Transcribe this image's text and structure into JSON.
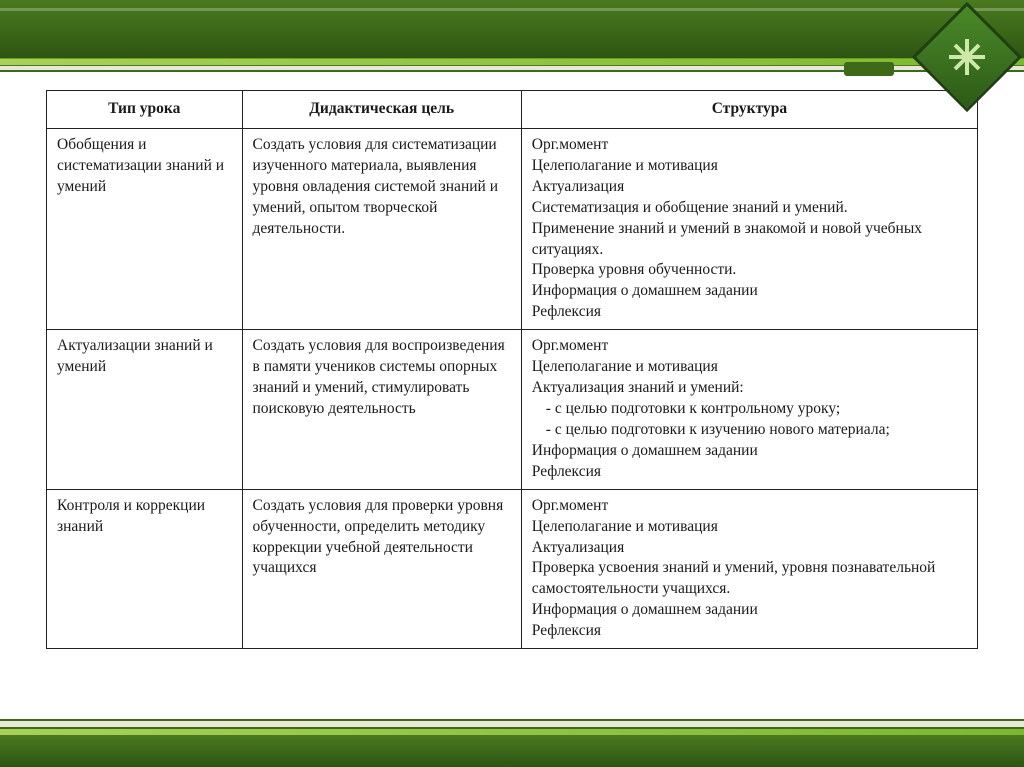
{
  "table": {
    "headers": [
      "Тип урока",
      "Дидактическая цель",
      "Структура"
    ],
    "column_widths_pct": [
      21,
      30,
      49
    ],
    "border_color": "#222222",
    "font_size_pt": 12,
    "rows": [
      {
        "type": "Обобщения и систематизации знаний и умений",
        "goal": "Создать условия для систематизации изученного материала, выявления уровня овладения системой знаний и умений, опытом творческой деятельности.",
        "structure": [
          {
            "text": "Орг.момент",
            "indent": false
          },
          {
            "text": "Целеполагание и мотивация",
            "indent": false
          },
          {
            "text": "Актуализация",
            "indent": false
          },
          {
            "text": "Систематизация и обобщение знаний и умений.",
            "indent": false
          },
          {
            "text": "Применение знаний и умений в знакомой и новой учебных ситуациях.",
            "indent": false
          },
          {
            "text": "Проверка уровня обученности.",
            "indent": false
          },
          {
            "text": "Информация о домашнем задании",
            "indent": false
          },
          {
            "text": "Рефлексия",
            "indent": false
          }
        ]
      },
      {
        "type": "Актуализации знаний и умений",
        "goal": "Создать условия для воспроизведения в памяти учеников системы опорных знаний и умений, стимулировать поисковую деятельность",
        "structure": [
          {
            "text": "Орг.момент",
            "indent": false
          },
          {
            "text": "Целеполагание и мотивация",
            "indent": false
          },
          {
            "text": "Актуализация знаний и умений:",
            "indent": false
          },
          {
            "text": "- с целью подготовки к контрольному уроку;",
            "indent": true
          },
          {
            "text": "- с целью подготовки к изучению нового материала;",
            "indent": true
          },
          {
            "text": "Информация о домашнем задании",
            "indent": false
          },
          {
            "text": "Рефлексия",
            "indent": false
          }
        ]
      },
      {
        "type": "Контроля и коррекции знаний",
        "goal": "Создать условия для проверки уровня обученности, определить методику коррекции учебной деятельности учащихся",
        "structure": [
          {
            "text": "Орг.момент",
            "indent": false
          },
          {
            "text": "Целеполагание и мотивация",
            "indent": false
          },
          {
            "text": "Актуализация",
            "indent": false
          },
          {
            "text": "Проверка усвоения знаний и умений, уровня познавательной самостоятельности учащихся.",
            "indent": false
          },
          {
            "text": "Информация о домашнем задании",
            "indent": false
          },
          {
            "text": "Рефлексия",
            "indent": false
          }
        ]
      }
    ]
  },
  "theme": {
    "banner_gradient": [
      "#4a7a1f",
      "#3d6919",
      "#2e5412"
    ],
    "accent_gradient": [
      "#a8d05a",
      "#7cb82f"
    ],
    "sub_bar_bg": "#e8e8d8",
    "logo_gradient": [
      "#4a8a2a",
      "#2d5a16"
    ],
    "logo_border": "#1f4010",
    "text_color": "#1a1a1a",
    "background": "#ffffff"
  }
}
